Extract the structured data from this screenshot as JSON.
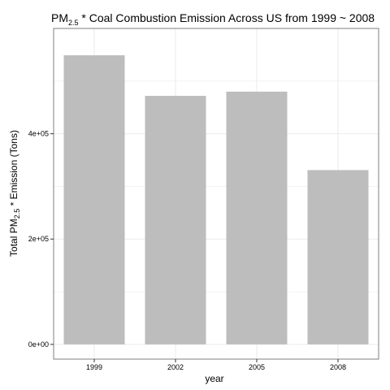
{
  "chart_data": {
    "type": "bar",
    "title": {
      "main": "PM",
      "sub": "2.5",
      "rest": " * Coal Combustion Emission Across US from 1999 ~ 2008"
    },
    "xlabel": "year",
    "ylabel": {
      "pre": "Total PM",
      "sub": "2.5",
      "post": " * Emission (Tons)"
    },
    "categories": [
      "1999",
      "2002",
      "2005",
      "2008"
    ],
    "values": [
      549000,
      472000,
      480000,
      331000
    ],
    "ylim": [
      -28000,
      600000
    ],
    "yticks": [
      {
        "value": 0,
        "label": "0e+00"
      },
      {
        "value": 200000,
        "label": "2e+05"
      },
      {
        "value": 400000,
        "label": "4e+05"
      }
    ],
    "grid": true,
    "bar_color": "#bdbdbd",
    "grid_color": "#ebebeb",
    "panel_border_color": "#7f7f7f"
  }
}
